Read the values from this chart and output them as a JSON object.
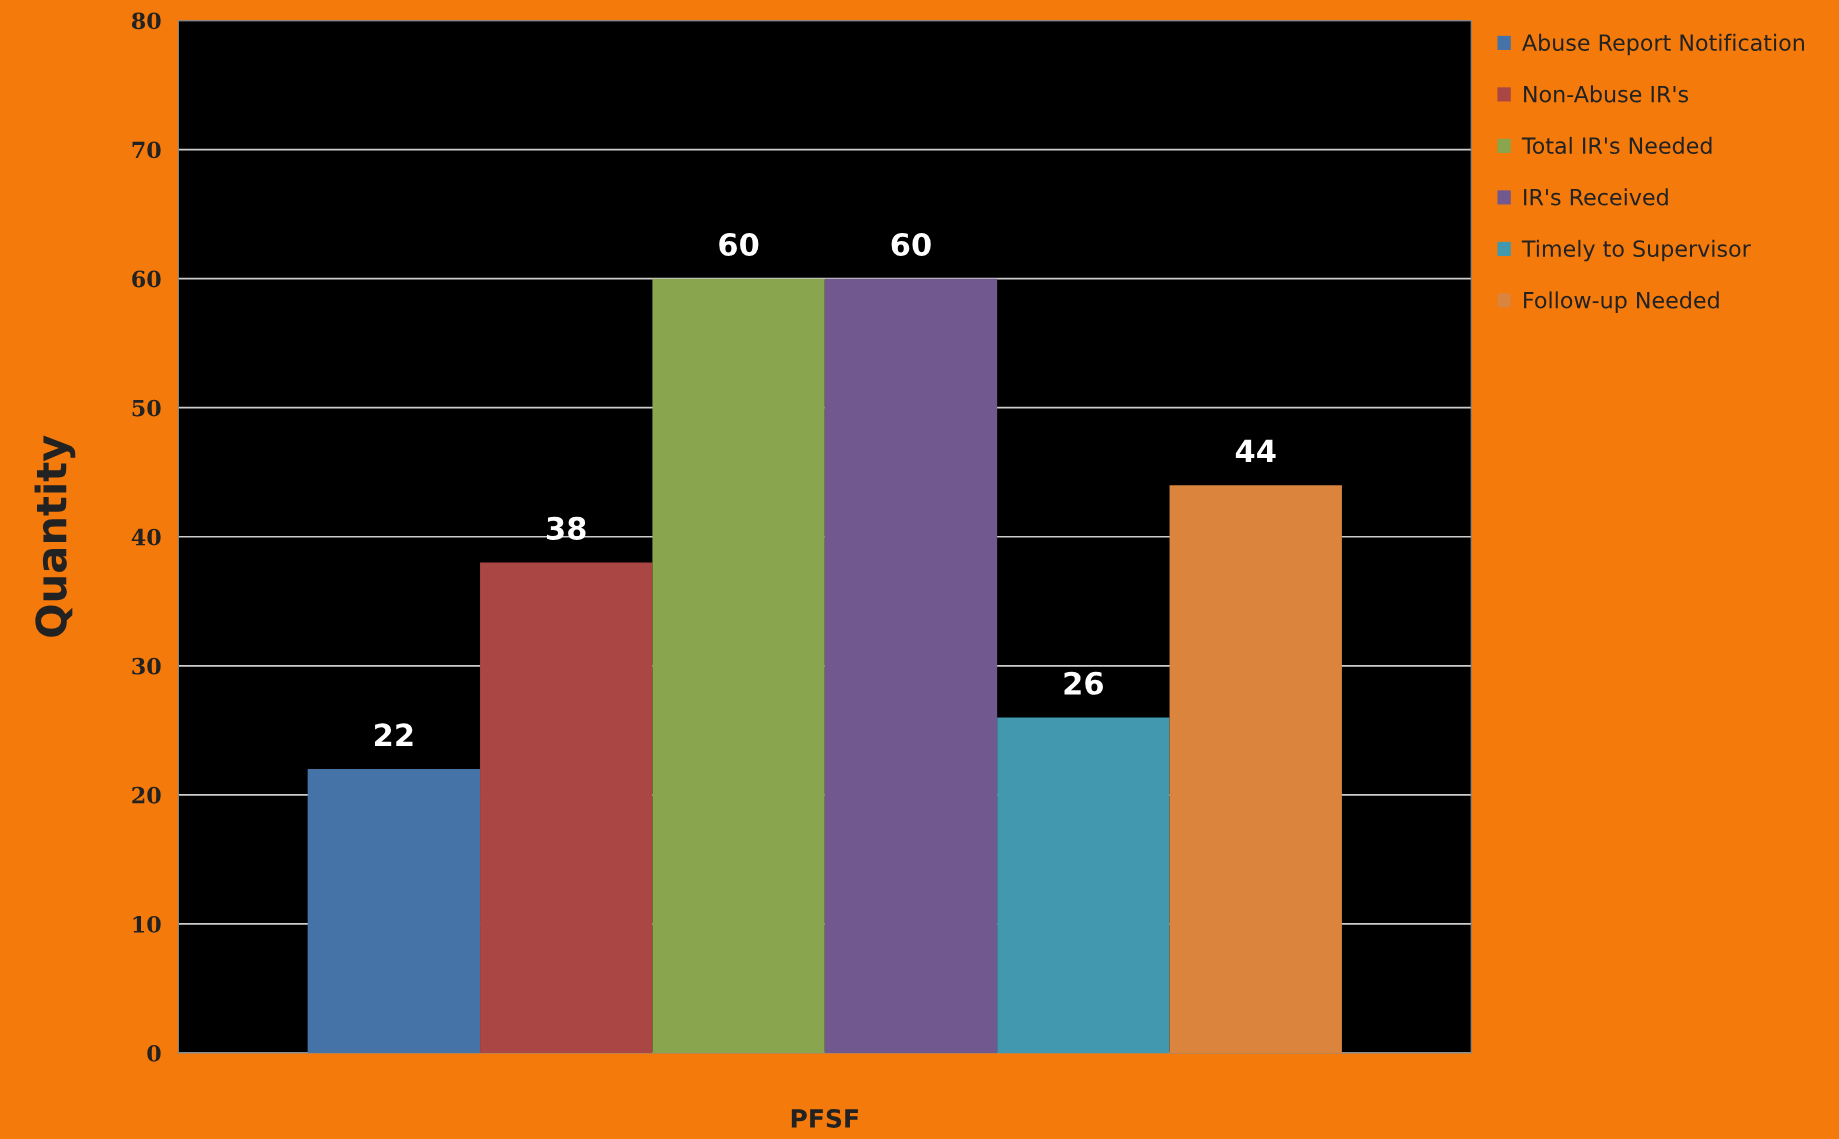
{
  "chart_data": {
    "type": "bar",
    "ylabel": "Quantity",
    "categories": [
      "PFSF"
    ],
    "series": [
      {
        "name": "Abuse Report Notification",
        "color": "#4572a7",
        "values": [
          22
        ]
      },
      {
        "name": "Non-Abuse IR's",
        "color": "#aa4643",
        "values": [
          38
        ]
      },
      {
        "name": "Total IR's Needed",
        "color": "#89a54e",
        "values": [
          60
        ]
      },
      {
        "name": "IR's Received",
        "color": "#71588f",
        "values": [
          60
        ]
      },
      {
        "name": "Timely to Supervisor",
        "color": "#4198af",
        "values": [
          26
        ]
      },
      {
        "name": "Follow-up Needed",
        "color": "#db843d",
        "values": [
          44
        ]
      }
    ],
    "ylim": [
      0,
      80
    ],
    "yticks": [
      0,
      10,
      20,
      30,
      40,
      50,
      60,
      70,
      80
    ],
    "grid": "y",
    "legend": "top right",
    "data_labels": true
  }
}
